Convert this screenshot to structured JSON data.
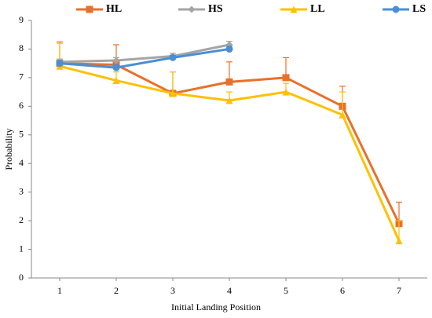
{
  "chart_data": {
    "type": "line",
    "x_label": "Initial Landing Position",
    "y_label": "Probability",
    "x": [
      1,
      2,
      3,
      4,
      5,
      6,
      7
    ],
    "xlim": [
      0.5,
      7.5
    ],
    "xticks": [
      1,
      2,
      3,
      4,
      5,
      6,
      7
    ],
    "ylim": [
      0,
      9
    ],
    "yticks": [
      0,
      1,
      2,
      3,
      4,
      5,
      6,
      7,
      8,
      9
    ],
    "grid": false,
    "legend": "top",
    "series": [
      {
        "name": "HL",
        "color": "#e8702a",
        "marker": "square",
        "values": [
          7.5,
          7.45,
          6.45,
          6.85,
          7.0,
          6.0,
          1.9
        ],
        "errors": [
          0.75,
          0.7,
          0.75,
          0.7,
          0.7,
          0.7,
          0.75
        ]
      },
      {
        "name": "HS",
        "color": "#a5a5a5",
        "marker": "diamond",
        "values": [
          7.55,
          7.6,
          7.75,
          8.15,
          null,
          null,
          null
        ],
        "errors": [
          0.1,
          0.1,
          0.1,
          0.12,
          null,
          null,
          null
        ]
      },
      {
        "name": "LL",
        "color": "#ffc000",
        "marker": "triangle",
        "values": [
          7.4,
          6.9,
          6.45,
          6.2,
          6.5,
          5.7,
          1.3
        ],
        "errors": [
          0.8,
          0.3,
          0.75,
          0.3,
          0.3,
          0.8,
          0.7
        ]
      },
      {
        "name": "LS",
        "color": "#4a8fd4",
        "marker": "circle",
        "values": [
          7.5,
          7.35,
          7.7,
          8.0,
          null,
          null,
          null
        ],
        "errors": [
          0.1,
          0.1,
          0.08,
          0.1,
          null,
          null,
          null
        ]
      }
    ]
  }
}
